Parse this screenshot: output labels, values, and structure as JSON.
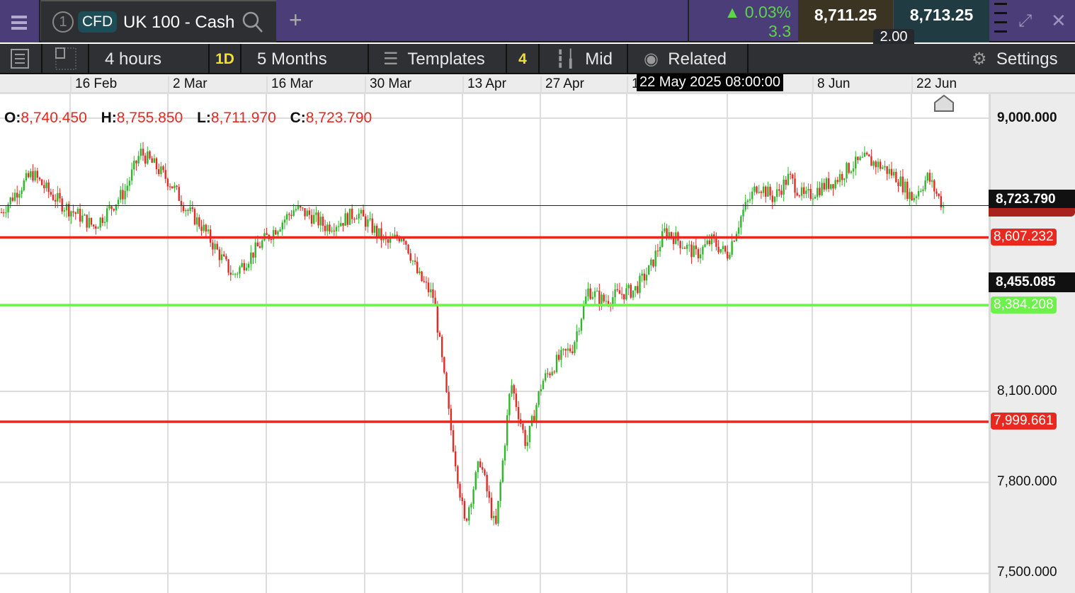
{
  "header": {
    "tab_number": "1",
    "instrument_type": "CFD",
    "instrument_name": "UK 100 - Cash",
    "change_pct": "0.03%",
    "change_abs": "3.3",
    "sell_price": "8,711.25",
    "buy_price": "8,713.25",
    "spread": "2.00",
    "change_color": "#5fd34a"
  },
  "toolbar": {
    "interval": "4 hours",
    "interval_shortcut": "1D",
    "range": "5 Months",
    "templates": "Templates",
    "templates_count": "4",
    "price_type": "Mid",
    "related": "Related",
    "settings": "Settings"
  },
  "date_axis": {
    "labels": [
      "16 Feb",
      "2 Mar",
      "16 Mar",
      "30 Mar",
      "13 Apr",
      "27 Apr",
      "1",
      "8 Jun",
      "22 Jun"
    ],
    "crosshair_time": "22 May 2025 08:00:00"
  },
  "ohlc": {
    "o_label": "O:",
    "o": "8,740.450",
    "h_label": "H:",
    "h": "8,755.850",
    "l_label": "L:",
    "l": "8,711.970",
    "c_label": "C:",
    "c": "8,723.790"
  },
  "price_axis": {
    "ticks": [
      "9,000.000",
      "8,100.000",
      "7,800.000",
      "7,500.000"
    ]
  },
  "price_tags": {
    "last": "8,723.790",
    "level1": "8,607.232",
    "crosshair": "8,455.085",
    "level2": "8,384.208",
    "level3": "7,999.661"
  },
  "colors": {
    "up": "#2fb62a",
    "down": "#e12b24",
    "resistance": "#e8291f",
    "support": "#6cf24a"
  },
  "chart_data": {
    "type": "candlestick",
    "ylim": [
      7450,
      9080
    ],
    "horizontal_lines": [
      8607.232,
      8384.208,
      7999.661
    ],
    "last_price": 8723.79,
    "closes": [
      8690,
      8760,
      8818,
      8760,
      8713,
      8680,
      8643,
      8700,
      8760,
      8888,
      8840,
      8783,
      8700,
      8643,
      8560,
      8480,
      8540,
      8597,
      8650,
      8702,
      8680,
      8643,
      8660,
      8690,
      8640,
      8585,
      8620,
      8480,
      8410,
      8014,
      7664,
      7874,
      7641,
      8130,
      7920,
      8130,
      8200,
      8247,
      8433,
      8398,
      8420,
      8433,
      8503,
      8632,
      8590,
      8550,
      8597,
      8550,
      8690,
      8783,
      8736,
      8806,
      8736,
      8770,
      8795,
      8841,
      8865,
      8841,
      8806,
      8736,
      8806,
      8709
    ]
  }
}
